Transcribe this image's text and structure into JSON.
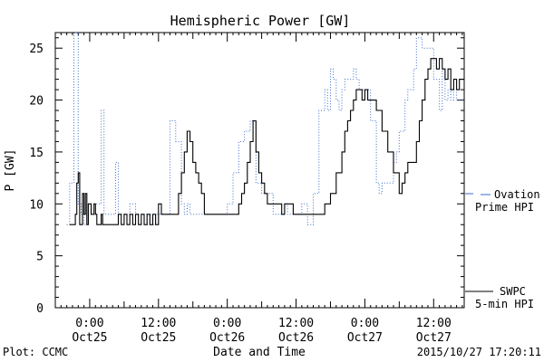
{
  "chart_data": {
    "type": "line",
    "title": "Hemispheric Power [GW]",
    "xlabel": "Date and Time",
    "ylabel": "P [GW]",
    "x_range": [
      "2015-10-24T18:00",
      "2015-10-27T17:20"
    ],
    "ylim": [
      0,
      26.5
    ],
    "y_ticks": [
      0,
      5,
      10,
      15,
      20,
      25
    ],
    "x_ticks": [
      {
        "time": "2015-10-25T00:00",
        "label1": "0:00",
        "label2": "Oct25"
      },
      {
        "time": "2015-10-25T12:00",
        "label1": "12:00",
        "label2": "Oct25"
      },
      {
        "time": "2015-10-26T00:00",
        "label1": "0:00",
        "label2": "Oct26"
      },
      {
        "time": "2015-10-26T12:00",
        "label1": "12:00",
        "label2": "Oct26"
      },
      {
        "time": "2015-10-27T00:00",
        "label1": "0:00",
        "label2": "Oct27"
      },
      {
        "time": "2015-10-27T12:00",
        "label1": "12:00",
        "label2": "Oct27"
      }
    ],
    "grid": false,
    "legend_position": "right",
    "series": [
      {
        "name": "SWPC 5-min HPI",
        "legend_line1": "SWPC",
        "legend_line2": "5-min HPI",
        "color": "#000000",
        "style": "solid-step",
        "points": [
          [
            "2015-10-24T20:30",
            8
          ],
          [
            "2015-10-24T21:30",
            9
          ],
          [
            "2015-10-24T21:45",
            12
          ],
          [
            "2015-10-24T22:00",
            13
          ],
          [
            "2015-10-24T22:15",
            8
          ],
          [
            "2015-10-24T22:45",
            11
          ],
          [
            "2015-10-24T23:00",
            9
          ],
          [
            "2015-10-24T23:15",
            11
          ],
          [
            "2015-10-24T23:30",
            8
          ],
          [
            "2015-10-24T23:45",
            10
          ],
          [
            "2015-10-25T00:15",
            9
          ],
          [
            "2015-10-25T00:45",
            10
          ],
          [
            "2015-10-25T01:00",
            9
          ],
          [
            "2015-10-25T01:15",
            8
          ],
          [
            "2015-10-25T02:00",
            9
          ],
          [
            "2015-10-25T02:15",
            8
          ],
          [
            "2015-10-25T04:00",
            8
          ],
          [
            "2015-10-25T05:00",
            9
          ],
          [
            "2015-10-25T05:30",
            8
          ],
          [
            "2015-10-25T06:00",
            9
          ],
          [
            "2015-10-25T06:30",
            8
          ],
          [
            "2015-10-25T07:00",
            9
          ],
          [
            "2015-10-25T07:30",
            8
          ],
          [
            "2015-10-25T08:00",
            9
          ],
          [
            "2015-10-25T08:30",
            8
          ],
          [
            "2015-10-25T09:00",
            9
          ],
          [
            "2015-10-25T09:30",
            8
          ],
          [
            "2015-10-25T10:00",
            9
          ],
          [
            "2015-10-25T10:30",
            8
          ],
          [
            "2015-10-25T11:00",
            9
          ],
          [
            "2015-10-25T11:30",
            8
          ],
          [
            "2015-10-25T12:00",
            10
          ],
          [
            "2015-10-25T12:30",
            9
          ],
          [
            "2015-10-25T13:00",
            9
          ],
          [
            "2015-10-25T15:00",
            9
          ],
          [
            "2015-10-25T15:30",
            11
          ],
          [
            "2015-10-25T16:00",
            13
          ],
          [
            "2015-10-25T16:30",
            15
          ],
          [
            "2015-10-25T17:00",
            17
          ],
          [
            "2015-10-25T17:30",
            16
          ],
          [
            "2015-10-25T18:00",
            14
          ],
          [
            "2015-10-25T18:30",
            13
          ],
          [
            "2015-10-25T19:00",
            12
          ],
          [
            "2015-10-25T19:30",
            11
          ],
          [
            "2015-10-25T20:00",
            9
          ],
          [
            "2015-10-25T22:00",
            9
          ],
          [
            "2015-10-26T01:30",
            9
          ],
          [
            "2015-10-26T02:00",
            10
          ],
          [
            "2015-10-26T02:30",
            11
          ],
          [
            "2015-10-26T03:00",
            12
          ],
          [
            "2015-10-26T03:30",
            14
          ],
          [
            "2015-10-26T04:00",
            16
          ],
          [
            "2015-10-26T04:30",
            18
          ],
          [
            "2015-10-26T05:00",
            15
          ],
          [
            "2015-10-26T05:30",
            13
          ],
          [
            "2015-10-26T06:00",
            12
          ],
          [
            "2015-10-26T06:30",
            11
          ],
          [
            "2015-10-26T07:00",
            10
          ],
          [
            "2015-10-26T09:00",
            10
          ],
          [
            "2015-10-26T09:30",
            9
          ],
          [
            "2015-10-26T10:00",
            10
          ],
          [
            "2015-10-26T11:00",
            10
          ],
          [
            "2015-10-26T11:30",
            9
          ],
          [
            "2015-10-26T15:30",
            9
          ],
          [
            "2015-10-26T16:00",
            9
          ],
          [
            "2015-10-26T17:00",
            10
          ],
          [
            "2015-10-26T18:00",
            11
          ],
          [
            "2015-10-26T19:00",
            13
          ],
          [
            "2015-10-26T20:00",
            15
          ],
          [
            "2015-10-26T20:30",
            17
          ],
          [
            "2015-10-26T21:00",
            18
          ],
          [
            "2015-10-26T21:30",
            19
          ],
          [
            "2015-10-26T22:00",
            20
          ],
          [
            "2015-10-26T22:30",
            21
          ],
          [
            "2015-10-26T23:00",
            21
          ],
          [
            "2015-10-26T23:30",
            20
          ],
          [
            "2015-10-27T00:00",
            21
          ],
          [
            "2015-10-27T00:30",
            20
          ],
          [
            "2015-10-27T01:00",
            20
          ],
          [
            "2015-10-27T02:00",
            19
          ],
          [
            "2015-10-27T03:00",
            17
          ],
          [
            "2015-10-27T04:00",
            15
          ],
          [
            "2015-10-27T05:00",
            13
          ],
          [
            "2015-10-27T06:00",
            11
          ],
          [
            "2015-10-27T06:30",
            12
          ],
          [
            "2015-10-27T07:00",
            13
          ],
          [
            "2015-10-27T07:30",
            14
          ],
          [
            "2015-10-27T08:30",
            14
          ],
          [
            "2015-10-27T09:00",
            16
          ],
          [
            "2015-10-27T09:30",
            18
          ],
          [
            "2015-10-27T10:00",
            20
          ],
          [
            "2015-10-27T10:30",
            22
          ],
          [
            "2015-10-27T11:00",
            23
          ],
          [
            "2015-10-27T11:30",
            24
          ],
          [
            "2015-10-27T12:30",
            23
          ],
          [
            "2015-10-27T13:00",
            24
          ],
          [
            "2015-10-27T13:30",
            23
          ],
          [
            "2015-10-27T14:00",
            22
          ],
          [
            "2015-10-27T14:30",
            23
          ],
          [
            "2015-10-27T15:00",
            21
          ],
          [
            "2015-10-27T15:30",
            22
          ],
          [
            "2015-10-27T16:00",
            21
          ],
          [
            "2015-10-27T16:30",
            22
          ],
          [
            "2015-10-27T17:20",
            22
          ]
        ]
      },
      {
        "name": "Ovation Prime HPI",
        "legend_line1": "Ovation",
        "legend_line2": "Prime HPI",
        "color": "#3a6bc9",
        "style": "dotted-step",
        "points": [
          [
            "2015-10-24T20:00",
            8
          ],
          [
            "2015-10-24T20:30",
            12
          ],
          [
            "2015-10-24T21:15",
            27
          ],
          [
            "2015-10-24T22:00",
            10
          ],
          [
            "2015-10-24T22:30",
            9
          ],
          [
            "2015-10-24T23:00",
            8
          ],
          [
            "2015-10-24T23:30",
            10
          ],
          [
            "2015-10-25T01:30",
            10
          ],
          [
            "2015-10-25T02:00",
            19
          ],
          [
            "2015-10-25T02:30",
            9
          ],
          [
            "2015-10-25T04:00",
            9
          ],
          [
            "2015-10-25T04:30",
            14
          ],
          [
            "2015-10-25T05:00",
            9
          ],
          [
            "2015-10-25T06:30",
            9
          ],
          [
            "2015-10-25T07:00",
            10
          ],
          [
            "2015-10-25T08:00",
            9
          ],
          [
            "2015-10-25T09:30",
            9
          ],
          [
            "2015-10-25T10:00",
            8
          ],
          [
            "2015-10-25T10:30",
            9
          ],
          [
            "2015-10-25T11:00",
            8
          ],
          [
            "2015-10-25T11:30",
            9
          ],
          [
            "2015-10-25T13:00",
            9
          ],
          [
            "2015-10-25T14:00",
            18
          ],
          [
            "2015-10-25T15:00",
            16
          ],
          [
            "2015-10-25T16:00",
            10
          ],
          [
            "2015-10-25T16:30",
            9
          ],
          [
            "2015-10-25T17:00",
            10
          ],
          [
            "2015-10-25T17:30",
            9
          ],
          [
            "2015-10-25T23:00",
            9
          ],
          [
            "2015-10-26T00:00",
            10
          ],
          [
            "2015-10-26T01:00",
            13
          ],
          [
            "2015-10-26T02:00",
            16
          ],
          [
            "2015-10-26T03:00",
            17
          ],
          [
            "2015-10-26T04:00",
            18
          ],
          [
            "2015-10-26T05:00",
            12
          ],
          [
            "2015-10-26T06:00",
            11
          ],
          [
            "2015-10-26T07:00",
            11
          ],
          [
            "2015-10-26T08:00",
            9
          ],
          [
            "2015-10-26T09:00",
            9
          ],
          [
            "2015-10-26T10:00",
            10
          ],
          [
            "2015-10-26T10:30",
            9
          ],
          [
            "2015-10-26T11:00",
            9
          ],
          [
            "2015-10-26T13:00",
            10
          ],
          [
            "2015-10-26T14:00",
            8
          ],
          [
            "2015-10-26T15:00",
            11
          ],
          [
            "2015-10-26T16:00",
            19
          ],
          [
            "2015-10-26T17:00",
            21
          ],
          [
            "2015-10-26T17:30",
            19
          ],
          [
            "2015-10-26T18:00",
            23
          ],
          [
            "2015-10-26T18:30",
            22
          ],
          [
            "2015-10-26T19:00",
            20
          ],
          [
            "2015-10-26T19:30",
            19
          ],
          [
            "2015-10-26T20:00",
            21
          ],
          [
            "2015-10-26T20:30",
            22
          ],
          [
            "2015-10-26T21:00",
            22
          ],
          [
            "2015-10-26T22:00",
            23
          ],
          [
            "2015-10-26T22:30",
            22
          ],
          [
            "2015-10-26T23:00",
            21
          ],
          [
            "2015-10-27T01:00",
            18
          ],
          [
            "2015-10-27T02:00",
            12
          ],
          [
            "2015-10-27T02:30",
            11
          ],
          [
            "2015-10-27T03:00",
            12
          ],
          [
            "2015-10-27T04:00",
            12
          ],
          [
            "2015-10-27T05:00",
            14
          ],
          [
            "2015-10-27T05:30",
            15
          ],
          [
            "2015-10-27T06:00",
            17
          ],
          [
            "2015-10-27T07:00",
            20
          ],
          [
            "2015-10-27T07:30",
            21
          ],
          [
            "2015-10-27T08:00",
            21
          ],
          [
            "2015-10-27T08:30",
            23
          ],
          [
            "2015-10-27T09:00",
            26
          ],
          [
            "2015-10-27T10:00",
            25
          ],
          [
            "2015-10-27T11:00",
            25
          ],
          [
            "2015-10-27T12:00",
            22
          ],
          [
            "2015-10-27T13:00",
            19
          ],
          [
            "2015-10-27T13:30",
            23
          ],
          [
            "2015-10-27T14:00",
            20
          ],
          [
            "2015-10-27T14:30",
            21
          ],
          [
            "2015-10-27T15:00",
            20
          ],
          [
            "2015-10-27T15:30",
            21
          ],
          [
            "2015-10-27T16:00",
            20
          ],
          [
            "2015-10-27T17:20",
            20
          ]
        ]
      }
    ]
  },
  "footer": {
    "left": "Plot: CCMC",
    "right": "2015/10/27 17:20:11"
  }
}
